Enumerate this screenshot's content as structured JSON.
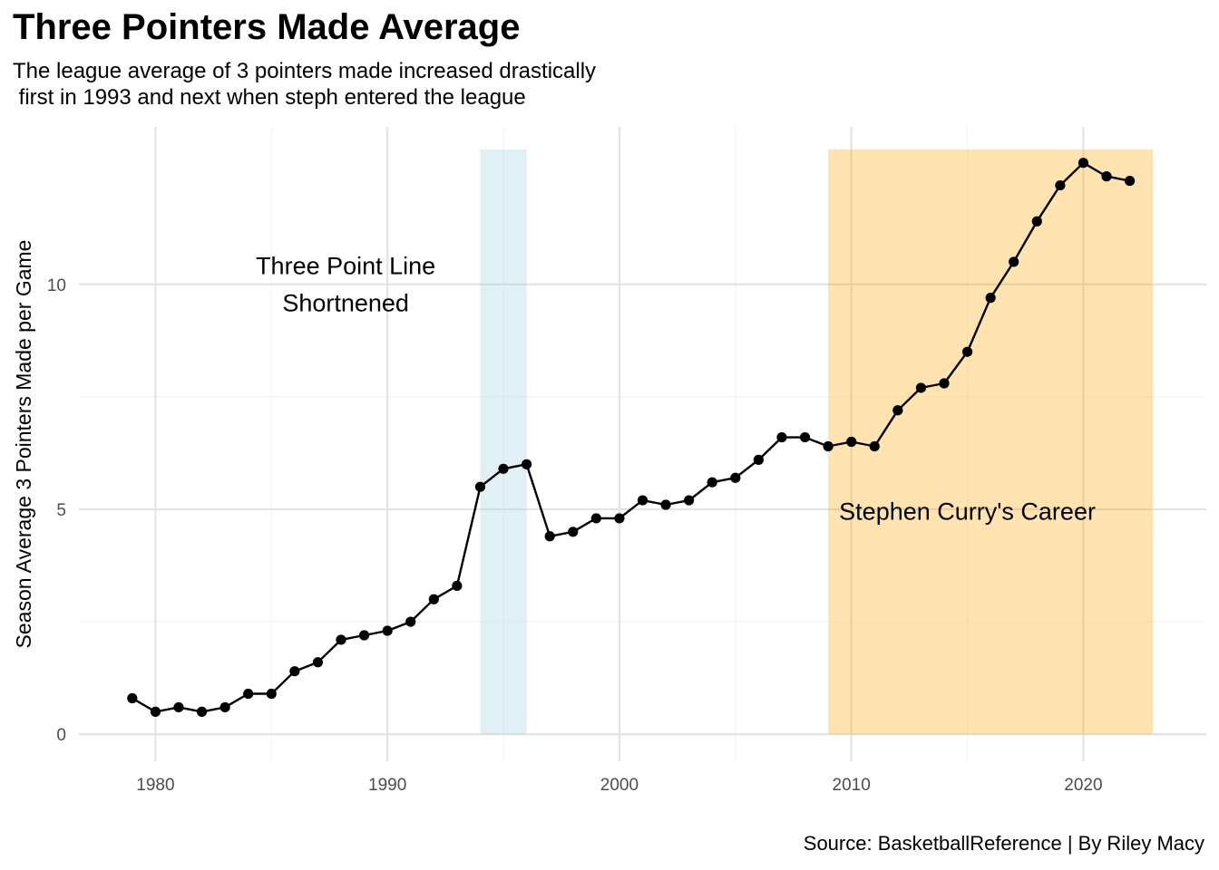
{
  "title": "Three Pointers Made Average",
  "subtitle": "The league average of 3 pointers made increased drastically\n first in 1993 and next when steph entered the league",
  "caption": "Source: BasketballReference | By Riley Macy",
  "chart_data": {
    "type": "line",
    "title": "Three Pointers Made Average",
    "ylabel": "Season Average 3 Pointers Made per Game",
    "xlabel": "",
    "xlim": [
      1976.7,
      2025.3
    ],
    "ylim": [
      -0.6,
      13.5
    ],
    "x_ticks": [
      1980,
      1990,
      2000,
      2010,
      2020
    ],
    "y_ticks": [
      0,
      5,
      10
    ],
    "grid": true,
    "legend": "none",
    "line_color": "#000000",
    "series": [
      {
        "x": [
          1979,
          1980,
          1981,
          1982,
          1983,
          1984,
          1985,
          1986,
          1987,
          1988,
          1989,
          1990,
          1991,
          1992,
          1993,
          1994,
          1995,
          1996,
          1997,
          1998,
          1999,
          2000,
          2001,
          2002,
          2003,
          2004,
          2005,
          2006,
          2007,
          2008,
          2009,
          2010,
          2011,
          2012,
          2013,
          2014,
          2015,
          2016,
          2017,
          2018,
          2019,
          2020,
          2021,
          2022
        ],
        "values": [
          0.8,
          0.5,
          0.6,
          0.5,
          0.6,
          0.9,
          0.9,
          1.4,
          1.6,
          2.1,
          2.2,
          2.3,
          2.5,
          3.0,
          3.3,
          5.5,
          5.9,
          6.0,
          4.4,
          4.5,
          4.8,
          4.8,
          5.2,
          5.1,
          5.2,
          5.6,
          5.7,
          6.1,
          6.6,
          6.6,
          6.4,
          6.5,
          6.4,
          7.2,
          7.7,
          7.8,
          8.5,
          9.7,
          10.5,
          11.4,
          12.2,
          12.7,
          12.4,
          12.3
        ]
      }
    ],
    "shaded_regions": [
      {
        "from": 1994,
        "to": 1996,
        "color": "#add8e6",
        "opacity": 0.38
      },
      {
        "from": 2009,
        "to": 2023,
        "color": "#ffa500",
        "opacity": 0.3
      }
    ],
    "region_top": 13.0,
    "annotations": [
      {
        "lines": [
          "Three Point Line",
          "Shortnened"
        ],
        "x": 1988.2,
        "y": 10.0
      },
      {
        "lines": [
          "Stephen Curry's Career"
        ],
        "x": 2015,
        "y": 4.95
      }
    ]
  }
}
